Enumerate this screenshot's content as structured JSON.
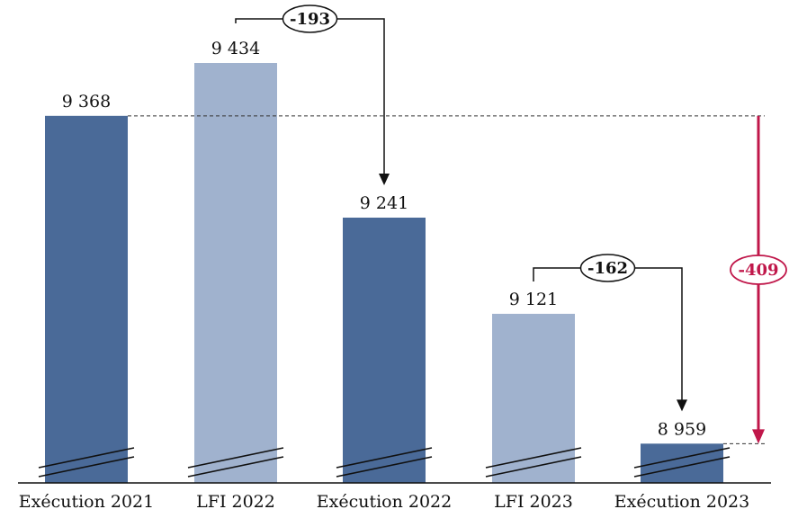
{
  "chart_data": {
    "type": "bar",
    "categories": [
      "Exécution 2021",
      "LFI 2022",
      "Exécution 2022",
      "LFI 2023",
      "Exécution 2023"
    ],
    "values": [
      9368,
      9434,
      9241,
      9121,
      8959
    ],
    "value_labels": [
      "9 368",
      "9 434",
      "9 241",
      "9 121",
      "8 959"
    ],
    "bar_kinds": [
      "execution",
      "lfi",
      "execution",
      "lfi",
      "execution"
    ],
    "axis_break": true,
    "grid": false,
    "title": "",
    "xlabel": "",
    "ylabel": "",
    "annotations": [
      {
        "label": "-193",
        "from_category": "LFI 2022",
        "to_category": "Exécution 2022",
        "value": -193
      },
      {
        "label": "-162",
        "from_category": "LFI 2023",
        "to_category": "Exécution 2023",
        "value": -162
      },
      {
        "label": "-409",
        "from_category": "Exécution 2021",
        "to_category": "Exécution 2023",
        "value": -409
      }
    ]
  },
  "colors": {
    "execution": "#4a6a98",
    "lfi": "#a0b2ce",
    "total_arrow": "#c0174a",
    "axis": "#111111"
  }
}
